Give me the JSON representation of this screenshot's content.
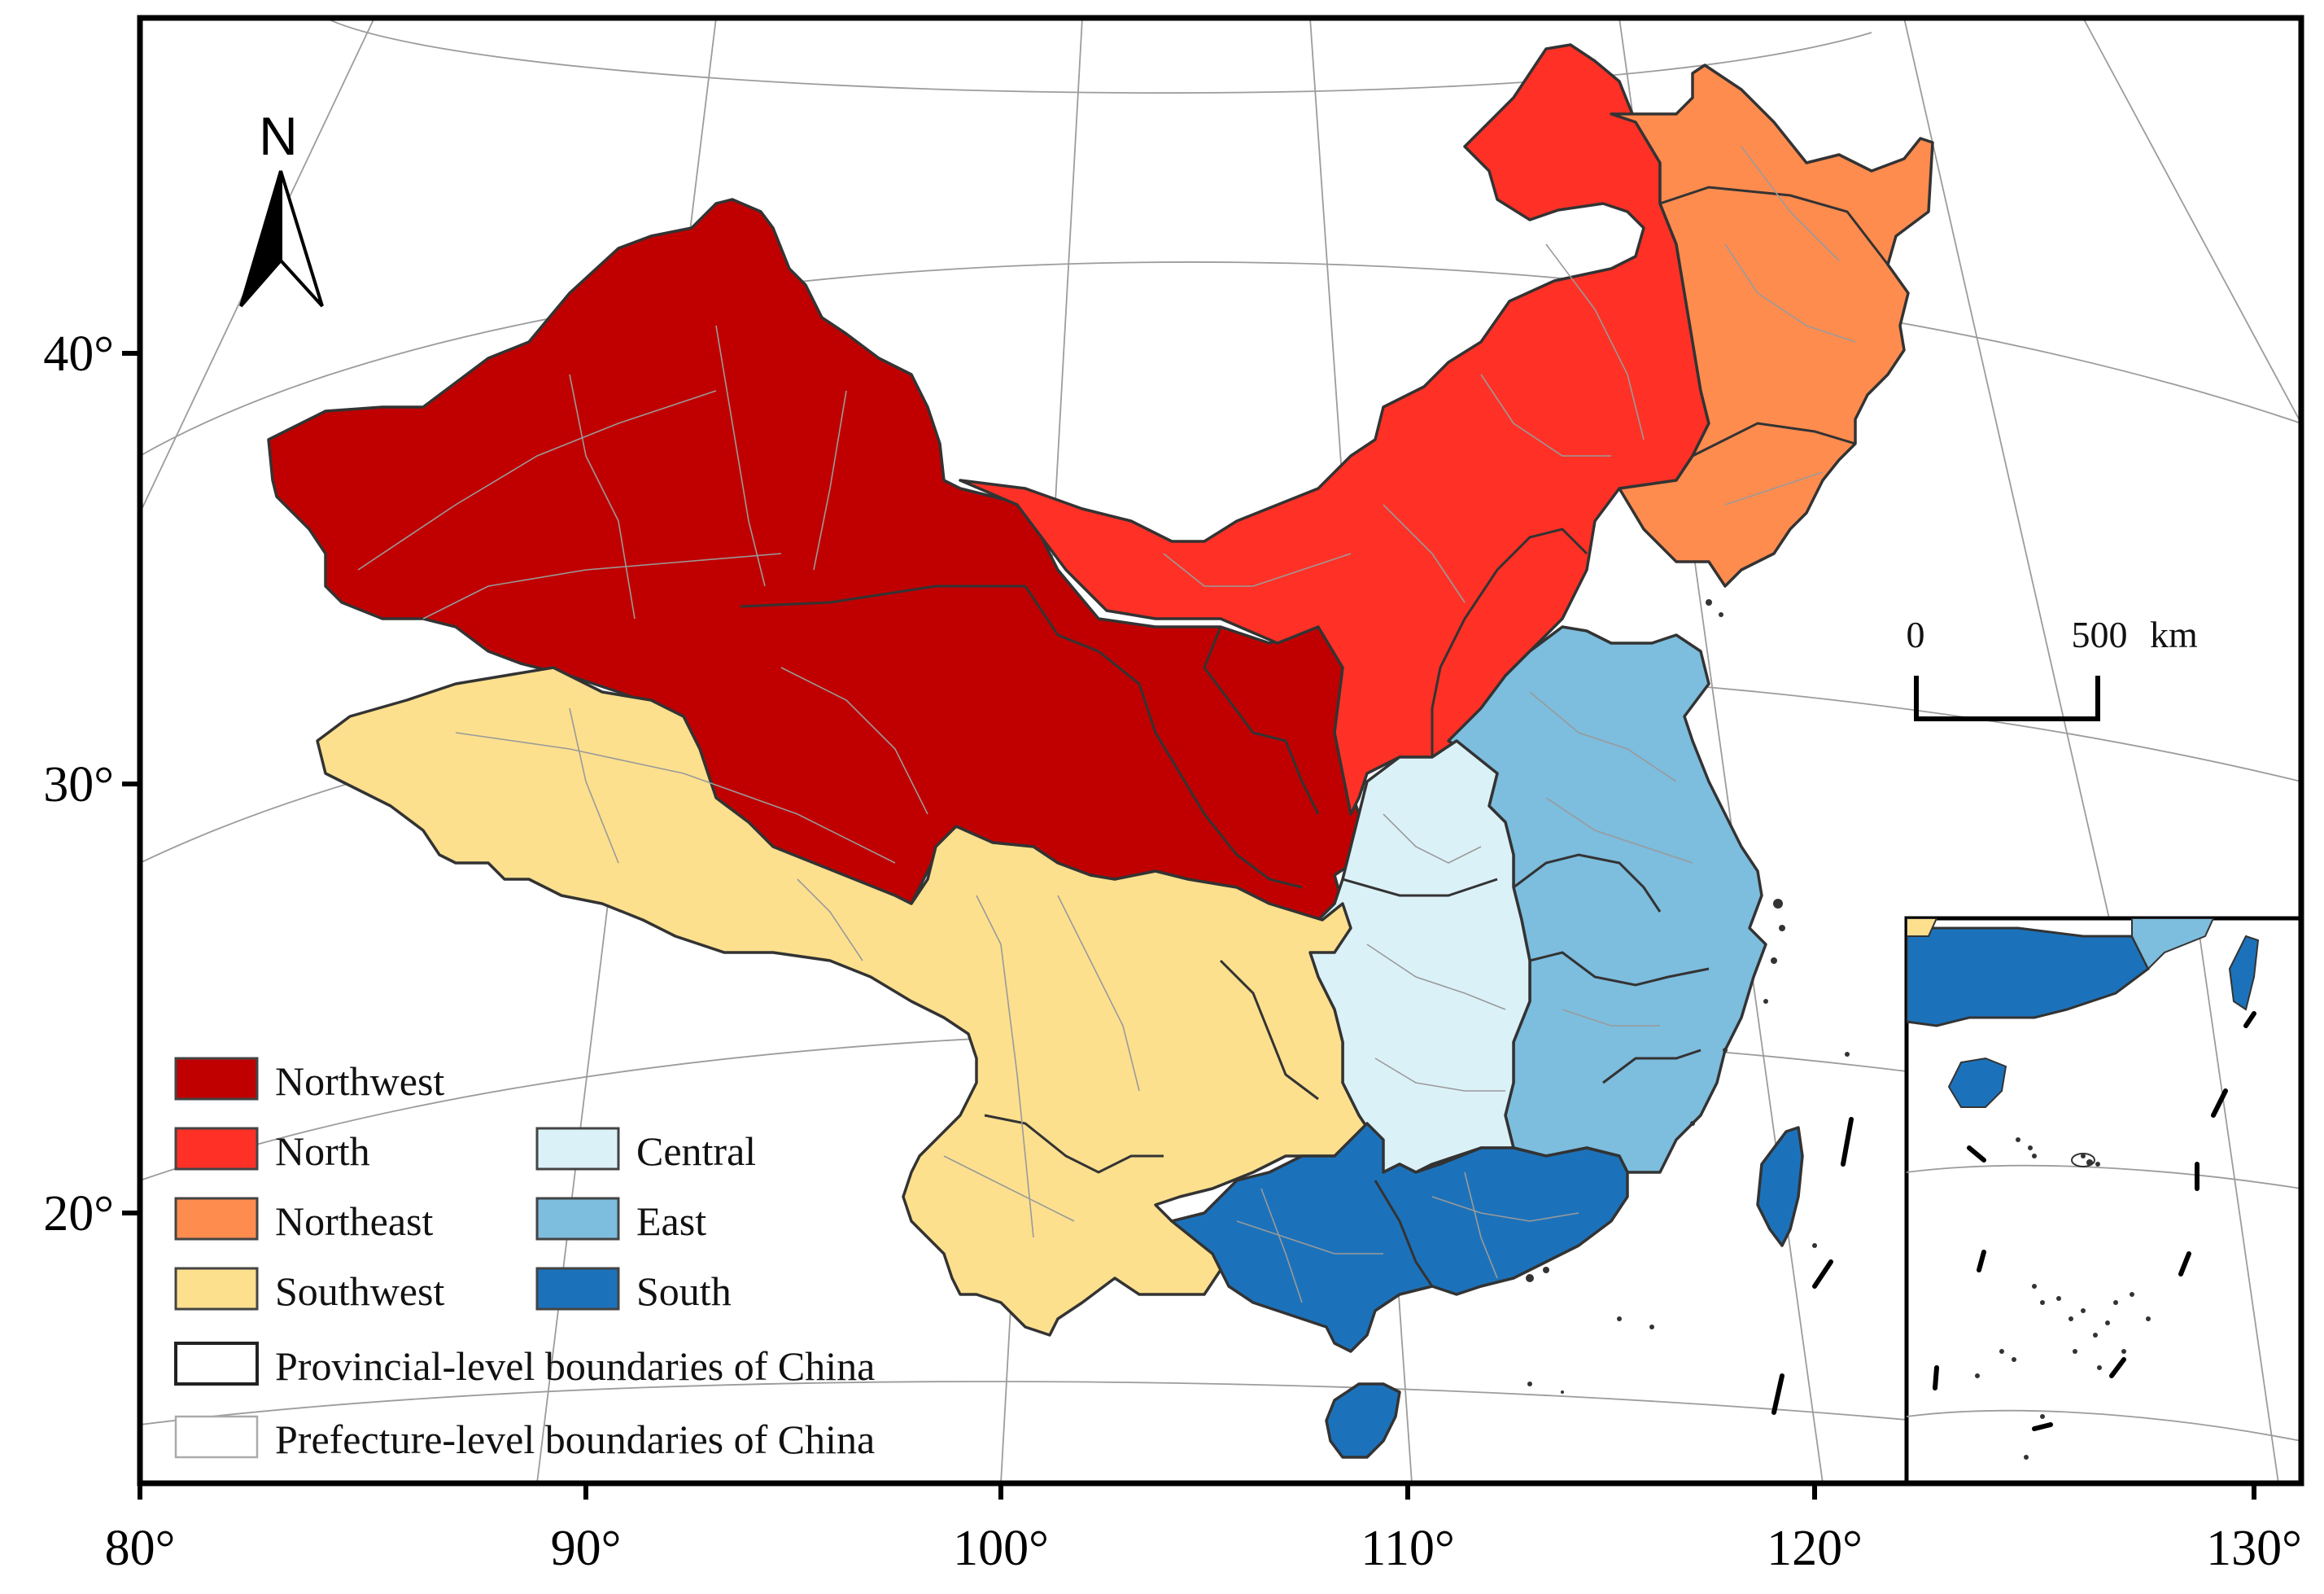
{
  "colors": {
    "northwest": "#C00000",
    "north": "#FF3126",
    "northeast": "#FF8C4F",
    "southwest": "#FCE08E",
    "central": "#DBF1F8",
    "east": "#7DBDDE",
    "south": "#1C72BA",
    "provincial_boundary": "#333333",
    "prefecture_boundary": "#9A9A9A"
  },
  "north_arrow": {
    "label": "N"
  },
  "scale_bar": {
    "start_label": "0",
    "end_label": "500",
    "unit": "km"
  },
  "axes": {
    "x_ticks": [
      "80°",
      "90°",
      "100°",
      "110°",
      "120°",
      "130°"
    ],
    "y_ticks": [
      "40°",
      "30°",
      "20°"
    ]
  },
  "legend": {
    "regions": [
      {
        "key": "northwest",
        "label": "Northwest"
      },
      {
        "key": "north",
        "label": "North"
      },
      {
        "key": "northeast",
        "label": "Northeast"
      },
      {
        "key": "southwest",
        "label": "Southwest"
      },
      {
        "key": "central",
        "label": "Central"
      },
      {
        "key": "east",
        "label": "East"
      },
      {
        "key": "south",
        "label": "South"
      }
    ],
    "provincial_label": "Provincial-level boundaries of China",
    "prefecture_label": "Prefecture-level boundaries of China"
  }
}
